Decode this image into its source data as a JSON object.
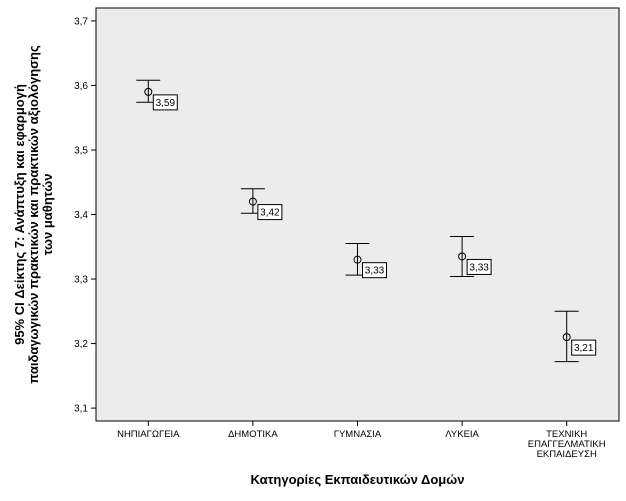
{
  "chart_data": {
    "type": "errorbar",
    "title": "",
    "xlabel": "Κατηγορίες Εκπαιδευτικών Δομών",
    "ylabel_lines": [
      "95% CI Δείκτης 7: Ανάπτυξη και εφαρμογή",
      "παιδαγωγικών πρακτικών και πρακτικών αξιολόγησης",
      "των μαθητών"
    ],
    "categories": [
      [
        "ΝΗΠΙΑΓΩΓΕΙΑ"
      ],
      [
        "ΔΗΜΟΤΙΚΑ"
      ],
      [
        "ΓΥΜΝΑΣΙΑ"
      ],
      [
        "ΛΥΚΕΙΑ"
      ],
      [
        "ΤΕΧΝΙΚΗ",
        "ΕΠΑΓΓΕΛΜΑΤΙΚΗ",
        "ΕΚΠΑΙΔΕΥΣΗ"
      ]
    ],
    "means": [
      3.59,
      3.42,
      3.33,
      3.335,
      3.21
    ],
    "lower": [
      3.574,
      3.402,
      3.306,
      3.304,
      3.172
    ],
    "upper": [
      3.608,
      3.44,
      3.355,
      3.366,
      3.25
    ],
    "value_labels": [
      "3,59",
      "3,42",
      "3,33",
      "3,33",
      "3,21"
    ],
    "yticks": [
      "3,1",
      "3,2",
      "3,3",
      "3,4",
      "3,5",
      "3,6",
      "3,7"
    ],
    "ytick_values": [
      3.1,
      3.2,
      3.3,
      3.4,
      3.5,
      3.6,
      3.7
    ],
    "ylim": [
      3.08,
      3.72
    ],
    "grid": false,
    "plot_background": "#ececec"
  }
}
